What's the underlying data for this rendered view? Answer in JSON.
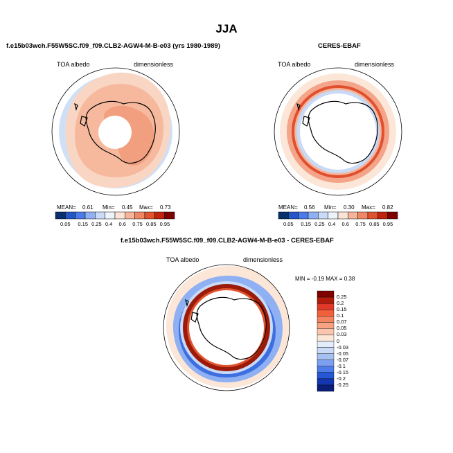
{
  "main_title": "JJA",
  "panels": [
    {
      "title": "f.e15b03wch.F55W5SC.f09_f09.CLB2-AGW4-M-B-e03 (yrs 1980-1989)",
      "field_label": "TOA albedo",
      "units_label": "dimensionless",
      "stats": {
        "mean_label": "MEAN=",
        "mean": "0.61",
        "min_label": "Min=",
        "min": "0.45",
        "max_label": "Max=",
        "max": "0.73"
      }
    },
    {
      "title": "CERES-EBAF",
      "field_label": "TOA albedo",
      "units_label": "dimensionless",
      "stats": {
        "mean_label": "MEAN=",
        "mean": "0.56",
        "min_label": "Min=",
        "min": "0.30",
        "max_label": "Max=",
        "max": "0.82"
      }
    },
    {
      "title": "f.e15b03wch.F55W5SC.f09_f09.CLB2-AGW4-M-B-e03 - CERES-EBAF",
      "field_label": "TOA albedo",
      "units_label": "dimensionless",
      "stats_text": "MIN = -0.19 MAX = 0.38"
    }
  ],
  "colorbar_horizontal": {
    "ticks": [
      "0.05",
      "0.15",
      "0.25",
      "0.4",
      "0.6",
      "0.75",
      "0.85",
      "0.95"
    ],
    "colors": [
      "#08306b",
      "#2457c5",
      "#4a7be8",
      "#8fb0f2",
      "#c9dbf7",
      "#eef2fb",
      "#fbe3d6",
      "#f6b59b",
      "#ef8766",
      "#e0532f",
      "#c0230f",
      "#7f0000"
    ]
  },
  "colorbar_vertical": {
    "ticks": [
      "0.25",
      "0.2",
      "0.15",
      "0.1",
      "0.07",
      "0.05",
      "0.03",
      "0",
      "-0.03",
      "-0.05",
      "-0.07",
      "-0.1",
      "-0.15",
      "-0.2",
      "-0.25"
    ],
    "colors": [
      "#7f0000",
      "#b31c0c",
      "#e0392a",
      "#f2603b",
      "#f4835f",
      "#f6a283",
      "#f9c6ad",
      "#fbe6d8",
      "#e2ecfa",
      "#c8daf6",
      "#a5c0f1",
      "#7d9ff0",
      "#4e7ce8",
      "#2458d6",
      "#1436b0",
      "#0a1e7a"
    ]
  },
  "map_colors": {
    "panel1_ocean": "#f8c9b1",
    "panel1_ice": "#f4a584",
    "panel1_light": "#fbe3d6",
    "panel2_red": "#e8573a",
    "panel2_blue": "#c6d6f4",
    "panel3_red": "#9b1a0a",
    "panel3_blue": "#3d6fe0",
    "land_outline": "#000000"
  }
}
